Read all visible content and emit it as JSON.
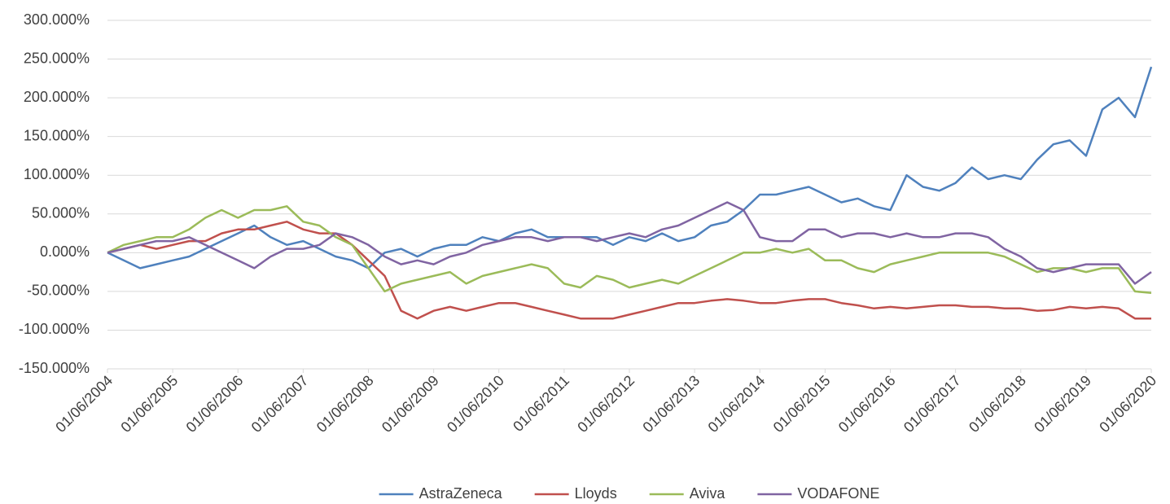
{
  "chart_data": {
    "type": "line",
    "x": [
      "01/06/2004",
      "01/09/2004",
      "01/12/2004",
      "01/03/2005",
      "01/06/2005",
      "01/09/2005",
      "01/12/2005",
      "01/03/2006",
      "01/06/2006",
      "01/09/2006",
      "01/12/2006",
      "01/03/2007",
      "01/06/2007",
      "01/09/2007",
      "01/12/2007",
      "01/03/2008",
      "01/06/2008",
      "01/09/2008",
      "01/12/2008",
      "01/03/2009",
      "01/06/2009",
      "01/09/2009",
      "01/12/2009",
      "01/03/2010",
      "01/06/2010",
      "01/09/2010",
      "01/12/2010",
      "01/03/2011",
      "01/06/2011",
      "01/09/2011",
      "01/12/2011",
      "01/03/2012",
      "01/06/2012",
      "01/09/2012",
      "01/12/2012",
      "01/03/2013",
      "01/06/2013",
      "01/09/2013",
      "01/12/2013",
      "01/03/2014",
      "01/06/2014",
      "01/09/2014",
      "01/12/2014",
      "01/03/2015",
      "01/06/2015",
      "01/09/2015",
      "01/12/2015",
      "01/03/2016",
      "01/06/2016",
      "01/09/2016",
      "01/12/2016",
      "01/03/2017",
      "01/06/2017",
      "01/09/2017",
      "01/12/2017",
      "01/03/2018",
      "01/06/2018",
      "01/09/2018",
      "01/12/2018",
      "01/03/2019",
      "01/06/2019",
      "01/09/2019",
      "01/12/2019",
      "01/03/2020",
      "01/06/2020"
    ],
    "series": [
      {
        "name": "AstraZeneca",
        "color": "#4f81bd",
        "values": [
          0,
          -10,
          -20,
          -15,
          -10,
          -5,
          5,
          15,
          25,
          35,
          20,
          10,
          15,
          5,
          -5,
          -10,
          -20,
          0,
          5,
          -5,
          5,
          10,
          10,
          20,
          15,
          25,
          30,
          20,
          20,
          20,
          20,
          10,
          20,
          15,
          25,
          15,
          20,
          35,
          40,
          55,
          75,
          75,
          80,
          85,
          75,
          65,
          70,
          60,
          55,
          100,
          85,
          80,
          90,
          110,
          95,
          100,
          95,
          120,
          140,
          145,
          125,
          185,
          200,
          175,
          240
        ]
      },
      {
        "name": "Lloyds",
        "color": "#c0504d",
        "values": [
          0,
          5,
          10,
          5,
          10,
          15,
          15,
          25,
          30,
          30,
          35,
          40,
          30,
          25,
          25,
          10,
          -10,
          -30,
          -75,
          -85,
          -75,
          -70,
          -75,
          -70,
          -65,
          -65,
          -70,
          -75,
          -80,
          -85,
          -85,
          -85,
          -80,
          -75,
          -70,
          -65,
          -65,
          -62,
          -60,
          -62,
          -65,
          -65,
          -62,
          -60,
          -60,
          -65,
          -68,
          -72,
          -70,
          -72,
          -70,
          -68,
          -68,
          -70,
          -70,
          -72,
          -72,
          -75,
          -74,
          -70,
          -72,
          -70,
          -72,
          -85,
          -85
        ]
      },
      {
        "name": "Aviva",
        "color": "#9bbb59",
        "values": [
          0,
          10,
          15,
          20,
          20,
          30,
          45,
          55,
          45,
          55,
          55,
          60,
          40,
          35,
          20,
          10,
          -20,
          -50,
          -40,
          -35,
          -30,
          -25,
          -40,
          -30,
          -25,
          -20,
          -15,
          -20,
          -40,
          -45,
          -30,
          -35,
          -45,
          -40,
          -35,
          -40,
          -30,
          -20,
          -10,
          0,
          0,
          5,
          0,
          5,
          -10,
          -10,
          -20,
          -25,
          -15,
          -10,
          -5,
          0,
          0,
          0,
          0,
          -5,
          -15,
          -25,
          -20,
          -20,
          -25,
          -20,
          -20,
          -50,
          -52
        ]
      },
      {
        "name": "VODAFONE",
        "color": "#8064a2",
        "values": [
          0,
          5,
          10,
          15,
          15,
          20,
          10,
          0,
          -10,
          -20,
          -5,
          5,
          5,
          10,
          25,
          20,
          10,
          -5,
          -15,
          -10,
          -15,
          -5,
          0,
          10,
          15,
          20,
          20,
          15,
          20,
          20,
          15,
          20,
          25,
          20,
          30,
          35,
          45,
          55,
          65,
          55,
          20,
          15,
          15,
          30,
          30,
          20,
          25,
          25,
          20,
          25,
          20,
          20,
          25,
          25,
          20,
          5,
          -5,
          -20,
          -25,
          -20,
          -15,
          -15,
          -15,
          -40,
          -25
        ]
      }
    ],
    "xlim": [
      "01/06/2004",
      "01/06/2020"
    ],
    "xticks": [
      "01/06/2004",
      "01/06/2005",
      "01/06/2006",
      "01/06/2007",
      "01/06/2008",
      "01/06/2009",
      "01/06/2010",
      "01/06/2011",
      "01/06/2012",
      "01/06/2013",
      "01/06/2014",
      "01/06/2015",
      "01/06/2016",
      "01/06/2017",
      "01/06/2018",
      "01/06/2019",
      "01/06/2020"
    ],
    "ylim": [
      -150,
      300
    ],
    "yticks": [
      {
        "value": -150,
        "label": "-150.000%"
      },
      {
        "value": -100,
        "label": "-100.000%"
      },
      {
        "value": -50,
        "label": "-50.000%"
      },
      {
        "value": 0,
        "label": "0.000%"
      },
      {
        "value": 50,
        "label": "50.000%"
      },
      {
        "value": 100,
        "label": "100.000%"
      },
      {
        "value": 150,
        "label": "150.000%"
      },
      {
        "value": 200,
        "label": "200.000%"
      },
      {
        "value": 250,
        "label": "250.000%"
      },
      {
        "value": 300,
        "label": "300.000%"
      }
    ],
    "grid": true,
    "legend": "bottom"
  }
}
